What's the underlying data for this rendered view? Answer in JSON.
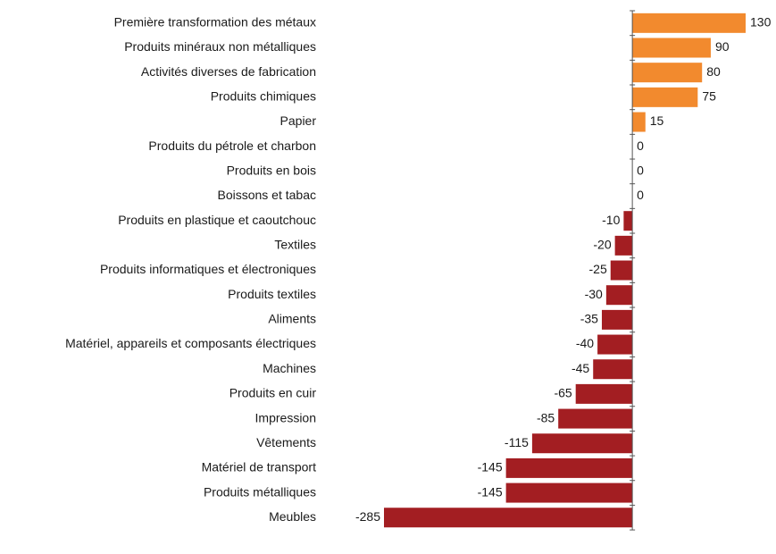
{
  "chart_data": {
    "type": "hbar",
    "categories": [
      "Première transformation des métaux",
      "Produits minéraux non métalliques",
      "Activités diverses de fabrication",
      "Produits chimiques",
      "Papier",
      "Produits du pétrole et charbon",
      "Produits en bois",
      "Boissons et tabac",
      "Produits en plastique et caoutchouc",
      "Textiles",
      "Produits informatiques et électroniques",
      "Produits textiles",
      "Aliments",
      "Matériel, appareils et composants électriques",
      "Machines",
      "Produits en cuir",
      "Impression",
      "Vêtements",
      "Matériel de transport",
      "Produits métalliques",
      "Meubles"
    ],
    "values": [
      130,
      90,
      80,
      75,
      15,
      0,
      0,
      0,
      -10,
      -20,
      -25,
      -30,
      -35,
      -40,
      -45,
      -65,
      -85,
      -115,
      -145,
      -145,
      -285
    ],
    "positive_color": "#f28a2e",
    "negative_color": "#a31e22"
  }
}
